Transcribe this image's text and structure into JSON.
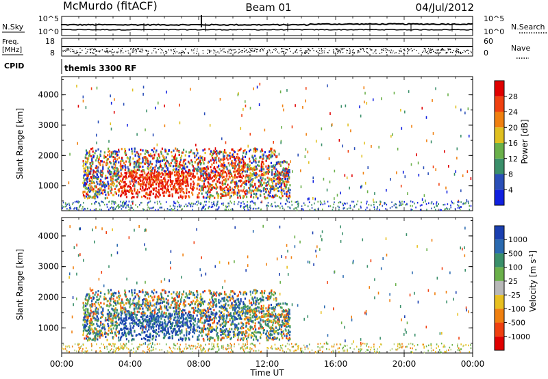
{
  "header": {
    "station": "McMurdo (fitACF)",
    "beam": "Beam 01",
    "date": "04/Jul/2012"
  },
  "params": {
    "nsky_label": "N.Sky",
    "nsearch_label": "N.Search",
    "noise_ticks_left": [
      "10^5",
      "10^0"
    ],
    "noise_ticks_right": [
      "10^5",
      "10^0"
    ],
    "freq_label": "Freq.",
    "freq_unit": "[MHz]",
    "freq_ticks": [
      "18",
      "8"
    ],
    "nave_label": "Nave",
    "nave_ticks": [
      "60",
      "0"
    ],
    "cpid_label": "CPID",
    "cpid_value": "themis 3300 RF"
  },
  "x_axis": {
    "label": "Time UT",
    "ticks": [
      "00:00",
      "04:00",
      "08:00",
      "12:00",
      "16:00",
      "20:00",
      "00:00"
    ],
    "range_hours": [
      0,
      24
    ]
  },
  "chart_data": [
    {
      "type": "heatmap",
      "ylabel": "Slant Range [km]",
      "yticks": [
        1000,
        2000,
        3000,
        4000
      ],
      "ylim": [
        180,
        4600
      ],
      "xlim": [
        0,
        24
      ],
      "colorbar": {
        "label": "Power [dB]",
        "ticks": [
          "4",
          "8",
          "12",
          "16",
          "20",
          "24",
          "28"
        ],
        "colors": [
          "#1020e0",
          "#2a4fb8",
          "#3a8f6a",
          "#6ab04a",
          "#e0c020",
          "#f08010",
          "#f04010",
          "#e00000"
        ]
      },
      "scatter_regions": [
        {
          "t_start": 1.2,
          "t_end": 13.3,
          "r_min": 600,
          "r_max": 2300,
          "note": "main echo band"
        },
        {
          "t_start": 5.0,
          "t_end": 7.5,
          "r_min": 600,
          "r_max": 1400,
          "note": "strongest echoes"
        }
      ]
    },
    {
      "type": "heatmap",
      "ylabel": "Slant Range [km]",
      "yticks": [
        1000,
        2000,
        3000,
        4000
      ],
      "ylim": [
        180,
        4600
      ],
      "xlim": [
        0,
        24
      ],
      "colorbar": {
        "label": "Velocity [m s^-1]",
        "ticks": [
          "1000",
          "500",
          "100",
          "25",
          "-25",
          "-100",
          "-500",
          "-1000"
        ],
        "colors": [
          "#1a3fb0",
          "#2a6ab0",
          "#3a8f6a",
          "#6ab04a",
          "#b8b8b8",
          "#e8c020",
          "#f08010",
          "#f04010",
          "#e00000"
        ]
      },
      "scatter_regions": [
        {
          "t_start": 1.2,
          "t_end": 13.3,
          "r_min": 600,
          "r_max": 2300,
          "note": "main echo band"
        }
      ]
    }
  ]
}
